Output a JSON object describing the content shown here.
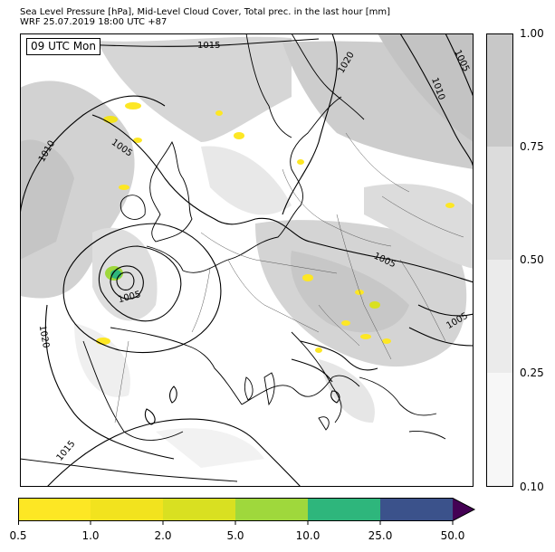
{
  "title": {
    "line1": "Sea Level Pressure [hPa], Mid-Level Cloud Cover, Total prec. in the last hour [mm]",
    "line2": "WRF 25.07.2019 18:00 UTC +87"
  },
  "valid_time": "09 UTC Mon",
  "isobar_labels": [
    "1015",
    "1020",
    "1005",
    "1010",
    "1010",
    "1005",
    "1005",
    "1020",
    "1005",
    "1005",
    "1015"
  ],
  "cloud_colorbar": {
    "ticks": [
      "1.00",
      "0.75",
      "0.50",
      "0.25",
      "0.10"
    ],
    "colors": [
      "#c8c8c8",
      "#dcdcdc",
      "#ebebeb",
      "#f7f7f7"
    ]
  },
  "prec_colorbar": {
    "ticks": [
      "0.5",
      "1.0",
      "2.0",
      "5.0",
      "10.0",
      "25.0",
      "50.0"
    ],
    "colors": [
      "#fde724",
      "#f2e31e",
      "#d9e021",
      "#9fd83c",
      "#2eb67c",
      "#3b528b"
    ],
    "extend_color": "#440154"
  },
  "colors": {
    "land_border": "#000000",
    "isobar": "#000000"
  }
}
